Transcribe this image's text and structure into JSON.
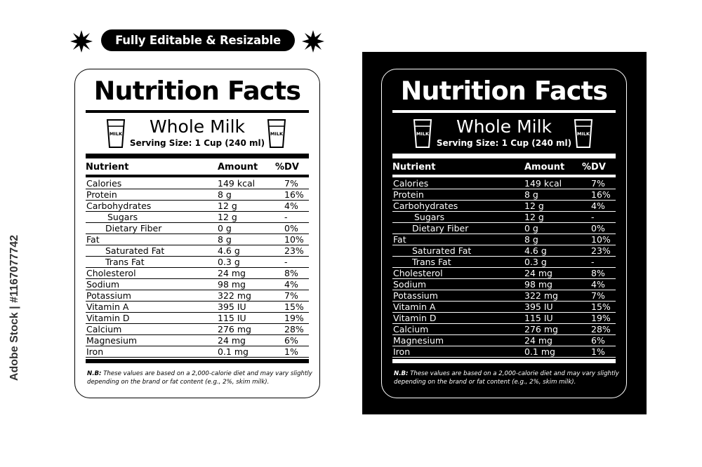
{
  "banner": {
    "text": "Fully Editable & Resizable"
  },
  "side_id": "Adobe Stock | #1167077742",
  "label": {
    "title": "Nutrition Facts",
    "product": "Whole Milk",
    "serving": "Serving Size: 1 Cup (240 ml)",
    "glass_text": "MILK",
    "headers": {
      "nutrient": "Nutrient",
      "amount": "Amount",
      "dv": "%DV"
    },
    "rows": [
      {
        "nutrient": "Calories",
        "amount": "149 kcal",
        "dv": "7%"
      },
      {
        "nutrient": "Protein",
        "amount": "8 g",
        "dv": "16%"
      },
      {
        "nutrient": "Carbohydrates",
        "amount": "12 g",
        "dv": "4%"
      },
      {
        "nutrient": "Sugars",
        "amount": "12 g",
        "dv": "-"
      },
      {
        "nutrient": "Dietary Fiber",
        "amount": "0 g",
        "dv": "0%"
      },
      {
        "nutrient": "Fat",
        "amount": "8 g",
        "dv": "10%"
      },
      {
        "nutrient": "Saturated Fat",
        "amount": "4.6 g",
        "dv": "23%"
      },
      {
        "nutrient": "Trans Fat",
        "amount": "0.3 g",
        "dv": "-"
      },
      {
        "nutrient": "Cholesterol",
        "amount": "24 mg",
        "dv": "8%"
      },
      {
        "nutrient": "Sodium",
        "amount": "98 mg",
        "dv": "4%"
      },
      {
        "nutrient": "Potassium",
        "amount": "322 mg",
        "dv": "7%"
      },
      {
        "nutrient": "Vitamin A",
        "amount": "395 IU",
        "dv": "15%"
      },
      {
        "nutrient": "Vitamin D",
        "amount": "115 IU",
        "dv": "19%"
      },
      {
        "nutrient": "Calcium",
        "amount": "276 mg",
        "dv": "28%"
      },
      {
        "nutrient": "Magnesium",
        "amount": "24 mg",
        "dv": "6%"
      },
      {
        "nutrient": "Iron",
        "amount": "0.1 mg",
        "dv": "1%"
      }
    ],
    "note_prefix": "N.B:",
    "note_text": "These values are based on a 2,000-calorie diet and may vary slightly depending on the brand or fat content (e.g., 2%, skim milk)."
  },
  "colors": {
    "ink": "#000000",
    "paper": "#ffffff"
  }
}
